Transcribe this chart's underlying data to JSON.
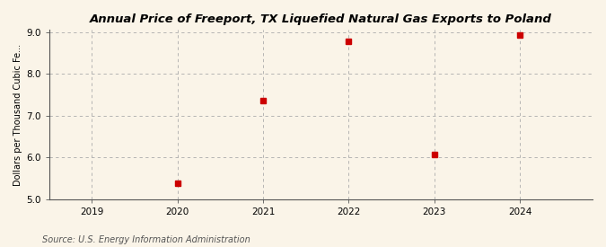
{
  "title": "Annual Price of Freeport, TX Liquefied Natural Gas Exports to Poland",
  "ylabel": "Dollars per Thousand Cubic Fe...",
  "source": "Source: U.S. Energy Information Administration",
  "years": [
    2020,
    2021,
    2022,
    2023,
    2024
  ],
  "values": [
    5.38,
    7.36,
    8.78,
    6.07,
    8.93
  ],
  "xlim": [
    2018.5,
    2024.85
  ],
  "ylim": [
    5.0,
    9.05
  ],
  "yticks": [
    5.0,
    6.0,
    7.0,
    8.0,
    9.0
  ],
  "xticks": [
    2019,
    2020,
    2021,
    2022,
    2023,
    2024
  ],
  "marker_color": "#cc0000",
  "marker": "s",
  "marker_size": 4,
  "background_color": "#faf4e8",
  "grid_color": "#aaaaaa",
  "title_fontsize": 9.5,
  "label_fontsize": 7,
  "tick_fontsize": 7.5,
  "source_fontsize": 7
}
